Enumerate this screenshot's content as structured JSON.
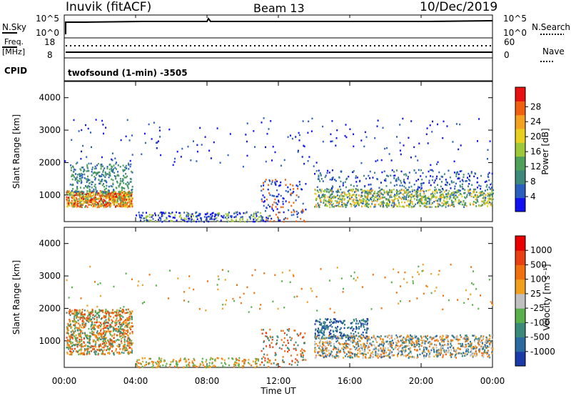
{
  "header": {
    "site": "Inuvik (fitACF)",
    "beam": "Beam 13",
    "date": "10/Dec/2019"
  },
  "top_panel": {
    "nsky_label": "N.Sky",
    "nsky_ticks": [
      "10^5",
      "10^0"
    ],
    "nsearch_label": "N.Search",
    "nsearch_ticks": [
      "10^5",
      "10^0"
    ],
    "freq_label": "Freq.",
    "freq_unit": "[MHz]",
    "freq_ticks": [
      "18",
      "8"
    ],
    "nave_label": "Nave",
    "nave_ticks": [
      "60",
      "0"
    ],
    "cpid_label": "CPID",
    "cpid_value": "twofsound (1-min) -3505"
  },
  "chart_data": [
    {
      "type": "heatmap",
      "panel": "power",
      "ylabel": "Slant Range [km]",
      "yticks": [
        "1000",
        "2000",
        "3000",
        "4000"
      ],
      "ylim": [
        180,
        4500
      ],
      "xlim_hours": [
        0,
        24
      ],
      "colorbar_label": "Power [dB]",
      "colorbar_ticks": [
        "4",
        "8",
        "12",
        "16",
        "20",
        "24",
        "28"
      ],
      "colorbar_colors": [
        "#1010f0",
        "#2a5fc0",
        "#3d8a7a",
        "#4ea05a",
        "#9cc83a",
        "#e8d020",
        "#f4a020",
        "#f06010",
        "#e81010"
      ]
    },
    {
      "type": "heatmap",
      "panel": "velocity",
      "ylabel": "Slant Range [km]",
      "yticks": [
        "1000",
        "2000",
        "3000",
        "4000"
      ],
      "ylim": [
        180,
        4500
      ],
      "xlim_hours": [
        0,
        24
      ],
      "colorbar_label": "Velocity [m s⁻¹]",
      "colorbar_ticks": [
        "1000",
        "500",
        "100",
        "25",
        "-25",
        "-100",
        "-500",
        "-1000"
      ],
      "colorbar_colors": [
        "#1a3aa8",
        "#2a6aa0",
        "#3a8a7a",
        "#5ab04a",
        "#c0c0c0",
        "#f0a020",
        "#f07010",
        "#e84010",
        "#e80000"
      ]
    }
  ],
  "xaxis": {
    "ticks": [
      "00:00",
      "04:00",
      "08:00",
      "12:00",
      "16:00",
      "20:00",
      "00:00"
    ],
    "label": "Time UT"
  }
}
